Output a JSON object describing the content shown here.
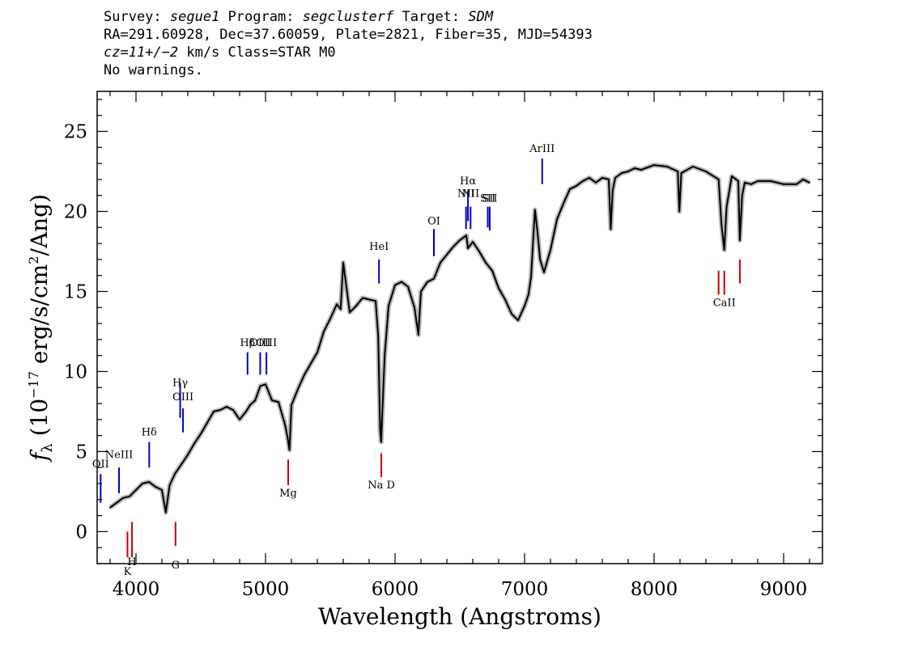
{
  "header": {
    "line1": {
      "survey_label": "Survey: ",
      "survey": "segue1",
      "program_label": " Program: ",
      "program": "segclusterf",
      "target_label": " Target: ",
      "target": "SDM"
    },
    "line2": "RA=291.60928, Dec=37.60059, Plate=2821, Fiber=35, MJD=54393",
    "line3": {
      "cz": "cz=11+/−2",
      "rest": " km/s Class=STAR M0"
    },
    "line4": "No warnings."
  },
  "chart_data": {
    "type": "line",
    "xlabel": "Wavelength (Angstroms)",
    "ylabel_parts": {
      "f": "f",
      "sub": "λ",
      "a": " (10",
      "exp1": "−17",
      "b": " erg/s/cm",
      "exp2": "2",
      "c": "/Ang)"
    },
    "xlim": [
      3700,
      9300
    ],
    "ylim": [
      -2,
      27.5
    ],
    "xticks": [
      4000,
      5000,
      6000,
      7000,
      8000,
      9000
    ],
    "yticks": [
      0,
      5,
      10,
      15,
      20,
      25
    ],
    "xminor_step": 200,
    "yminor_step": 1,
    "series": [
      {
        "color": "#000000",
        "error_color": "#b8b8b8",
        "x": [
          3800,
          3850,
          3900,
          3950,
          4000,
          4050,
          4100,
          4150,
          4200,
          4230,
          4260,
          4300,
          4350,
          4400,
          4450,
          4500,
          4550,
          4600,
          4650,
          4700,
          4750,
          4800,
          4850,
          4880,
          4920,
          4960,
          5000,
          5050,
          5100,
          5150,
          5170,
          5185,
          5200,
          5250,
          5300,
          5350,
          5400,
          5450,
          5500,
          5550,
          5580,
          5600,
          5650,
          5700,
          5750,
          5800,
          5850,
          5870,
          5885,
          5893,
          5900,
          5920,
          5950,
          6000,
          6050,
          6100,
          6150,
          6180,
          6200,
          6250,
          6300,
          6350,
          6400,
          6450,
          6500,
          6550,
          6563,
          6600,
          6650,
          6700,
          6750,
          6800,
          6850,
          6900,
          6950,
          7000,
          7030,
          7050,
          7080,
          7100,
          7120,
          7150,
          7200,
          7250,
          7300,
          7350,
          7400,
          7450,
          7500,
          7550,
          7600,
          7650,
          7665,
          7680,
          7700,
          7750,
          7800,
          7850,
          7900,
          8000,
          8100,
          8183,
          8195,
          8210,
          8300,
          8400,
          8498,
          8520,
          8542,
          8560,
          8600,
          8650,
          8662,
          8680,
          8700,
          8750,
          8800,
          8900,
          9000,
          9100,
          9150,
          9200
        ],
        "y": [
          1.5,
          1.8,
          2.1,
          2.2,
          2.6,
          3.0,
          3.1,
          2.8,
          2.6,
          1.2,
          2.9,
          3.6,
          4.2,
          4.8,
          5.5,
          6.1,
          6.8,
          7.5,
          7.6,
          7.8,
          7.6,
          7.0,
          7.5,
          7.9,
          8.2,
          9.1,
          9.2,
          8.2,
          8.1,
          6.7,
          5.9,
          5.1,
          7.9,
          8.9,
          9.8,
          10.5,
          11.2,
          12.5,
          13.3,
          14.2,
          13.9,
          16.8,
          13.7,
          14.1,
          14.6,
          14.5,
          14.4,
          12.2,
          6.3,
          5.6,
          7.1,
          11.0,
          14.1,
          15.4,
          15.6,
          15.3,
          14.0,
          12.3,
          15.0,
          15.6,
          15.8,
          16.8,
          17.3,
          17.8,
          18.2,
          18.5,
          17.7,
          18.1,
          17.5,
          16.8,
          16.3,
          15.2,
          14.5,
          13.6,
          13.2,
          14.1,
          14.8,
          15.9,
          20.1,
          18.7,
          17.0,
          16.2,
          17.6,
          19.5,
          20.5,
          21.4,
          21.6,
          21.9,
          22.1,
          21.8,
          22.1,
          22.0,
          18.9,
          21.3,
          22.1,
          22.4,
          22.5,
          22.7,
          22.6,
          22.9,
          22.8,
          22.5,
          20.0,
          22.4,
          22.8,
          22.5,
          22.0,
          19.2,
          17.6,
          20.3,
          22.2,
          21.9,
          18.2,
          21.0,
          21.8,
          21.7,
          21.9,
          21.9,
          21.7,
          21.7,
          22.0,
          21.8
        ]
      }
    ],
    "lines": [
      {
        "label": "OII",
        "x": 3727,
        "y1": 1.8,
        "y2": 3.6,
        "label_y": 4.0,
        "color": "#0000cc"
      },
      {
        "label": "NeIII",
        "x": 3869,
        "y1": 2.4,
        "y2": 4.0,
        "label_y": 4.6,
        "color": "#0000cc"
      },
      {
        "label": "Hδ",
        "x": 4102,
        "y1": 4.0,
        "y2": 5.6,
        "label_y": 6.0,
        "color": "#0000cc"
      },
      {
        "label": "Hγ",
        "x": 4341,
        "y1": 7.1,
        "y2": 9.3,
        "label_y": 9.1,
        "color": "#0000cc"
      },
      {
        "label": "OIII",
        "x": 4363,
        "y1": 6.2,
        "y2": 7.7,
        "label_y": 8.2,
        "color": "#0000cc"
      },
      {
        "label": "Hβ",
        "x": 4861,
        "y1": 9.8,
        "y2": 11.2,
        "label_y": 11.6,
        "color": "#0000cc"
      },
      {
        "label": "OIII",
        "x": 4959,
        "y1": 9.8,
        "y2": 11.2,
        "label_y": 11.6,
        "color": "#0000cc"
      },
      {
        "label": "OIII",
        "x": 5007,
        "y1": 9.8,
        "y2": 11.2,
        "label_y": 11.6,
        "color": "#0000cc"
      },
      {
        "label": "HeI",
        "x": 5876,
        "y1": 15.5,
        "y2": 17.0,
        "label_y": 17.6,
        "color": "#0000cc"
      },
      {
        "label": "OI",
        "x": 6300,
        "y1": 17.2,
        "y2": 18.9,
        "label_y": 19.2,
        "color": "#0000cc"
      },
      {
        "label": "NII",
        "x": 6548,
        "y1": 18.9,
        "y2": 20.3,
        "label_y": 20.9,
        "color": "#0000cc"
      },
      {
        "label": "Hα",
        "x": 6563,
        "y1": 19.4,
        "y2": 21.3,
        "label_y": 21.7,
        "color": "#0000cc"
      },
      {
        "label": "NII",
        "x": 6583,
        "y1": 18.9,
        "y2": 20.3,
        "label_y": 20.9,
        "color": "#0000cc"
      },
      {
        "label": "SII",
        "x": 6716,
        "y1": 19.0,
        "y2": 20.3,
        "label_y": 20.6,
        "color": "#0000cc"
      },
      {
        "label": "SII",
        "x": 6731,
        "y1": 18.8,
        "y2": 20.3,
        "label_y": 20.6,
        "color": "#0000cc"
      },
      {
        "label": "ArIII",
        "x": 7136,
        "y1": 21.7,
        "y2": 23.3,
        "label_y": 23.7,
        "color": "#0000cc"
      },
      {
        "label": "K",
        "x": 3934,
        "y1": -1.6,
        "y2": 0.0,
        "label_y": -2.7,
        "color": "#cc0000"
      },
      {
        "label": "H",
        "x": 3969,
        "y1": -1.6,
        "y2": 0.6,
        "label_y": -2.1,
        "color": "#cc0000"
      },
      {
        "label": "G",
        "x": 4305,
        "y1": -0.9,
        "y2": 0.6,
        "label_y": -2.3,
        "color": "#cc0000"
      },
      {
        "label": "Mg",
        "x": 5175,
        "y1": 2.9,
        "y2": 4.5,
        "label_y": 2.2,
        "color": "#cc0000"
      },
      {
        "label": "Na D",
        "x": 5894,
        "y1": 3.4,
        "y2": 4.9,
        "label_y": 2.7,
        "color": "#cc0000"
      },
      {
        "label": "",
        "x": 8498,
        "y1": 14.8,
        "y2": 16.3,
        "label_y": 0,
        "color": "#cc0000"
      },
      {
        "label": "CaII",
        "x": 8542,
        "y1": 14.8,
        "y2": 16.3,
        "label_y": 14.1,
        "color": "#cc0000"
      },
      {
        "label": "",
        "x": 8662,
        "y1": 15.5,
        "y2": 17.0,
        "label_y": 0,
        "color": "#cc0000"
      }
    ]
  }
}
